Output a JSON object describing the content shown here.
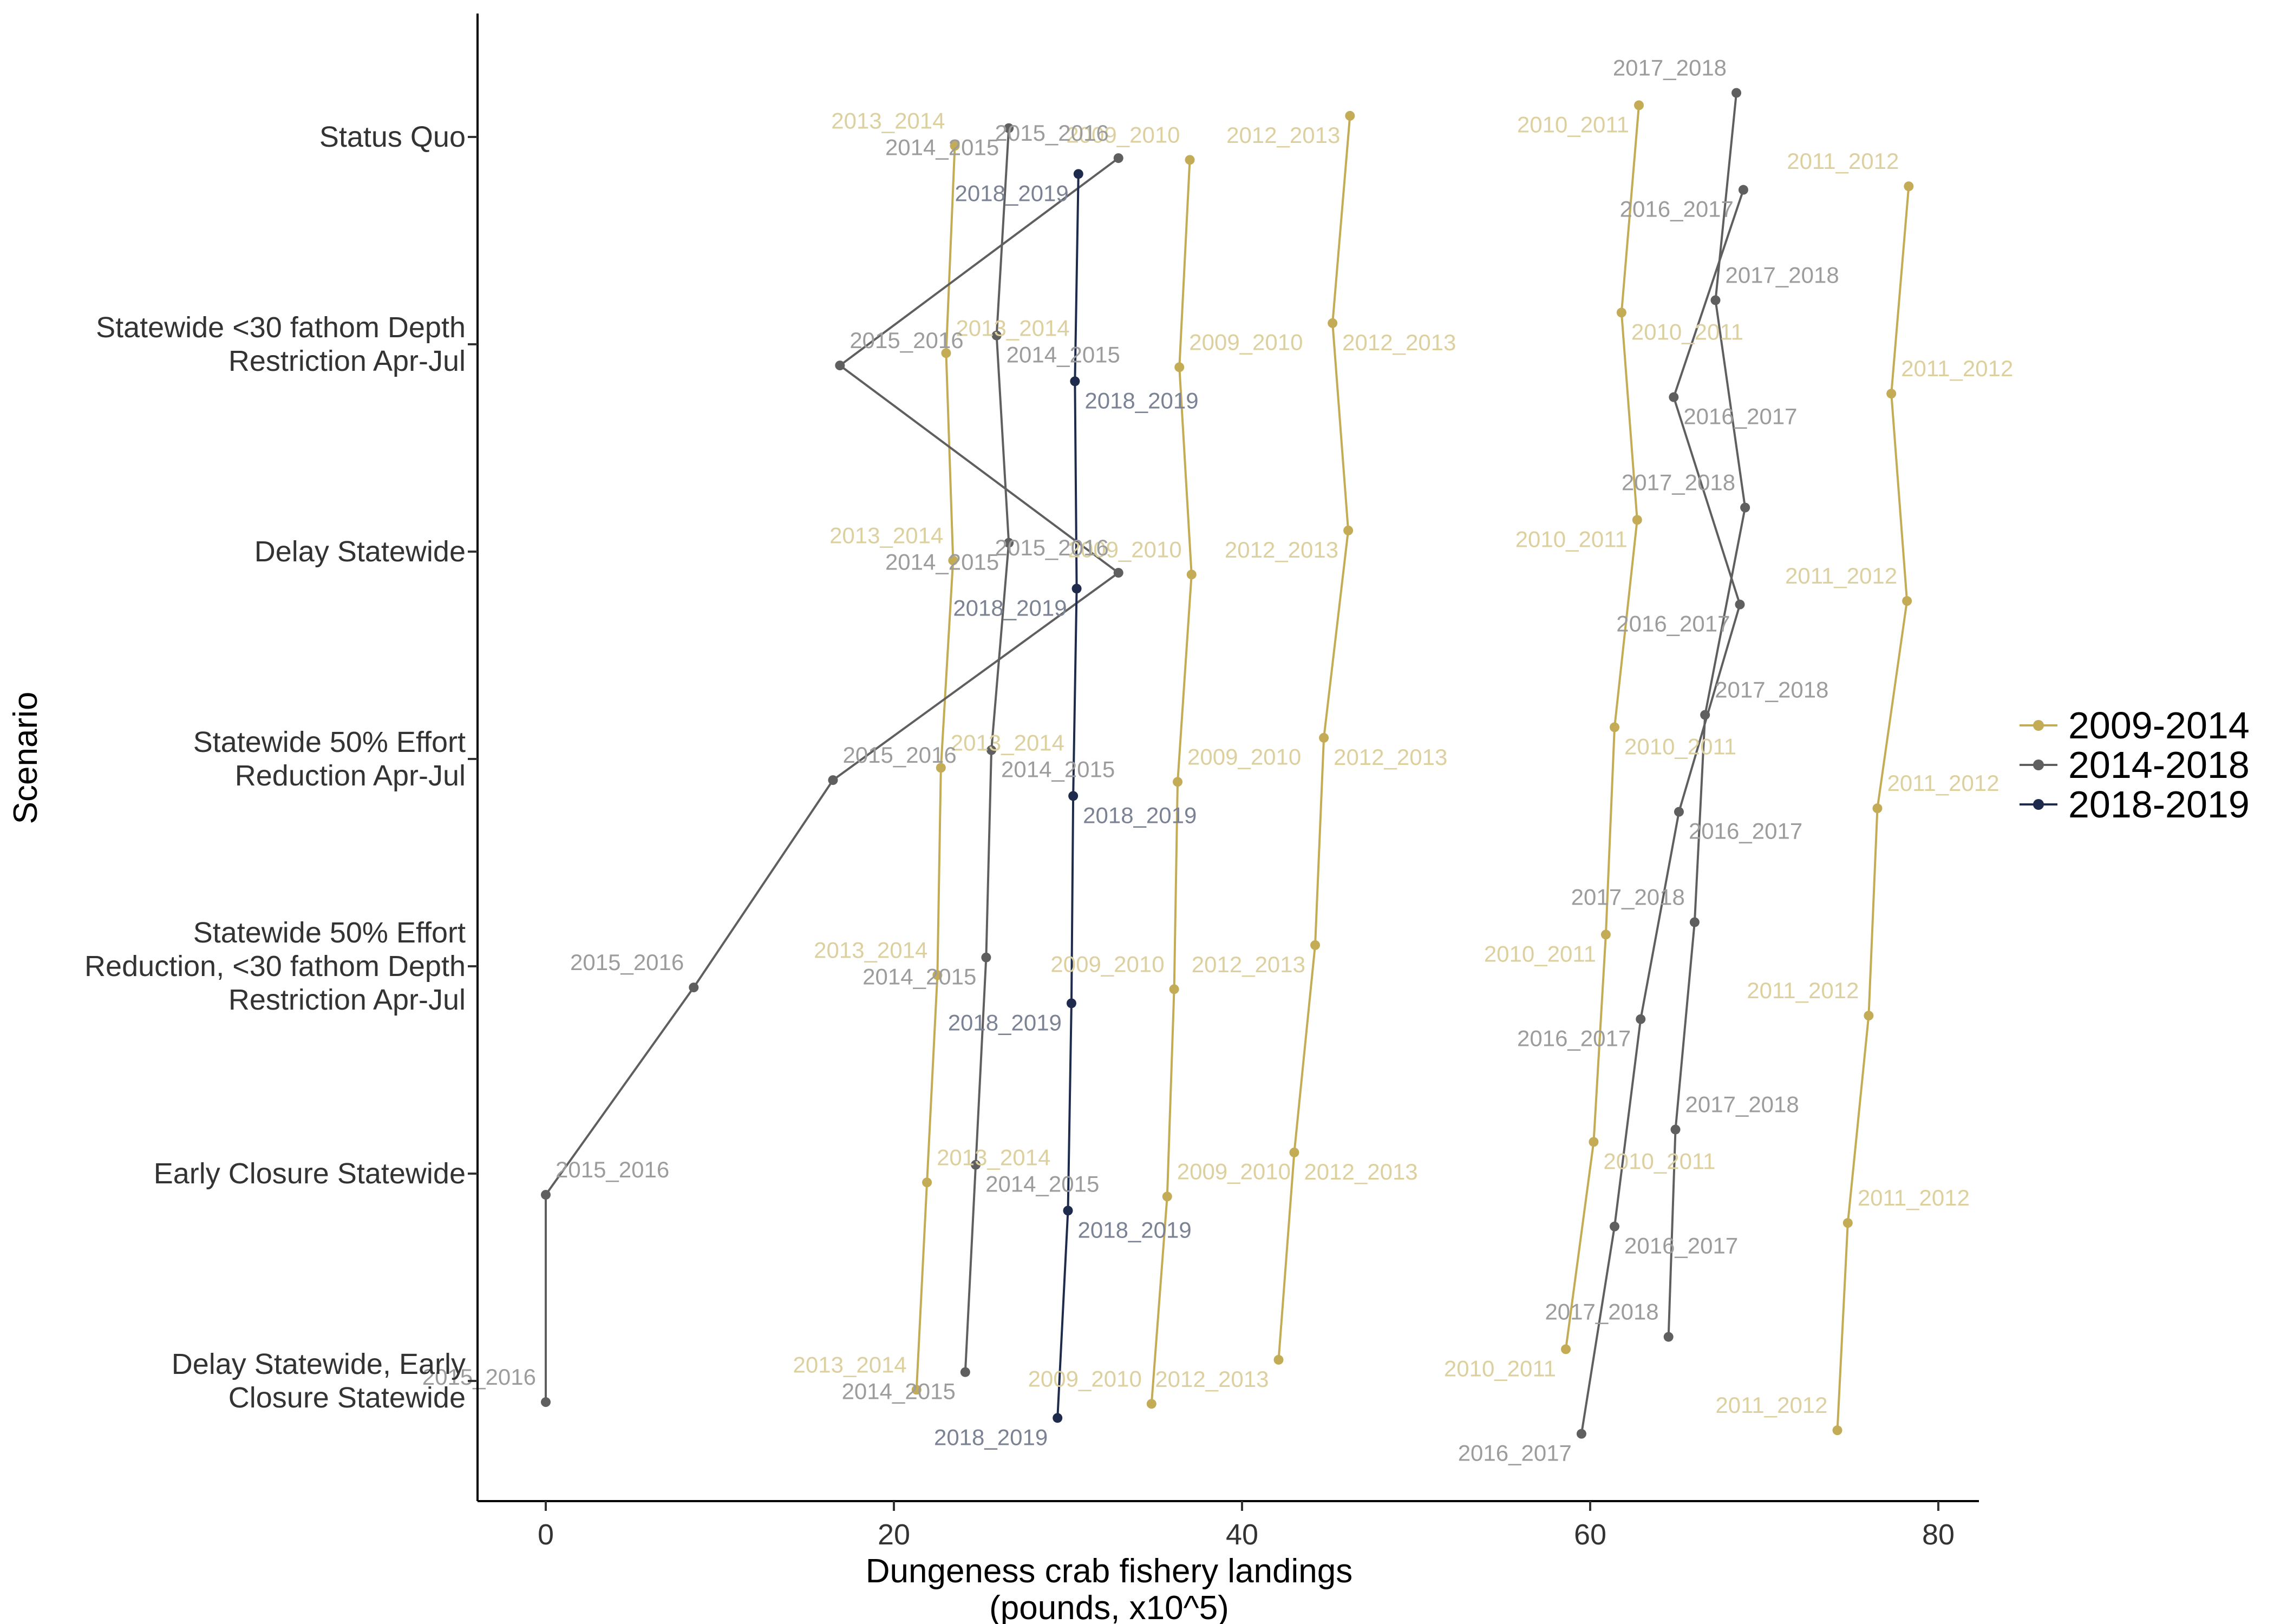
{
  "chart_data": {
    "type": "line",
    "xlabel": "Dungeness crab fishery landings\n(pounds, x10^5)",
    "ylabel": "Scenario",
    "xlim": [
      -4,
      82
    ],
    "x_ticks": [
      0,
      20,
      40,
      60,
      80
    ],
    "grid": false,
    "legend": {
      "position": "right",
      "title": ""
    },
    "groups": [
      {
        "name": "2009-2014",
        "color": "#c3ac55"
      },
      {
        "name": "2014-2018",
        "color": "#5f5f5f"
      },
      {
        "name": "2018-2019",
        "color": "#1e2b4d"
      }
    ],
    "scenarios": [
      "Status Quo",
      "Statewide <30 fathom Depth\nRestriction Apr-Jul",
      "Delay Statewide",
      "Statewide 50% Effort\nReduction Apr-Jul",
      "Statewide 50% Effort\nReduction, <30 fathom Depth\nRestriction Apr-Jul",
      "Early Closure Statewide",
      "Delay Statewide, Early\nClosure Statewide"
    ],
    "series": [
      {
        "name": "2009_2010",
        "group": "2009-2014",
        "values": [
          37.0,
          36.4,
          37.1,
          36.3,
          36.1,
          35.7,
          34.8
        ]
      },
      {
        "name": "2010_2011",
        "group": "2009-2014",
        "values": [
          62.8,
          61.8,
          62.7,
          61.4,
          60.9,
          60.2,
          58.6
        ]
      },
      {
        "name": "2011_2012",
        "group": "2009-2014",
        "values": [
          78.3,
          77.3,
          78.2,
          76.5,
          76.0,
          74.8,
          74.2
        ]
      },
      {
        "name": "2012_2013",
        "group": "2009-2014",
        "values": [
          46.2,
          45.2,
          46.1,
          44.7,
          44.2,
          43.0,
          42.1
        ]
      },
      {
        "name": "2013_2014",
        "group": "2009-2014",
        "values": [
          23.5,
          23.0,
          23.4,
          22.7,
          22.5,
          21.9,
          21.3
        ]
      },
      {
        "name": "2014_2015",
        "group": "2014-2018",
        "values": [
          26.6,
          25.9,
          26.6,
          25.6,
          25.3,
          24.7,
          24.1
        ]
      },
      {
        "name": "2015_2016",
        "group": "2014-2018",
        "values": [
          32.9,
          16.9,
          32.9,
          16.5,
          8.5,
          0.0,
          0.0
        ]
      },
      {
        "name": "2016_2017",
        "group": "2014-2018",
        "values": [
          68.8,
          64.8,
          68.6,
          65.1,
          62.9,
          61.4,
          59.5
        ]
      },
      {
        "name": "2017_2018",
        "group": "2014-2018",
        "values": [
          68.4,
          67.2,
          68.9,
          66.6,
          66.0,
          64.9,
          64.5
        ]
      },
      {
        "name": "2018_2019",
        "group": "2018-2019",
        "values": [
          30.6,
          30.4,
          30.5,
          30.3,
          30.2,
          30.0,
          29.4
        ]
      }
    ]
  }
}
